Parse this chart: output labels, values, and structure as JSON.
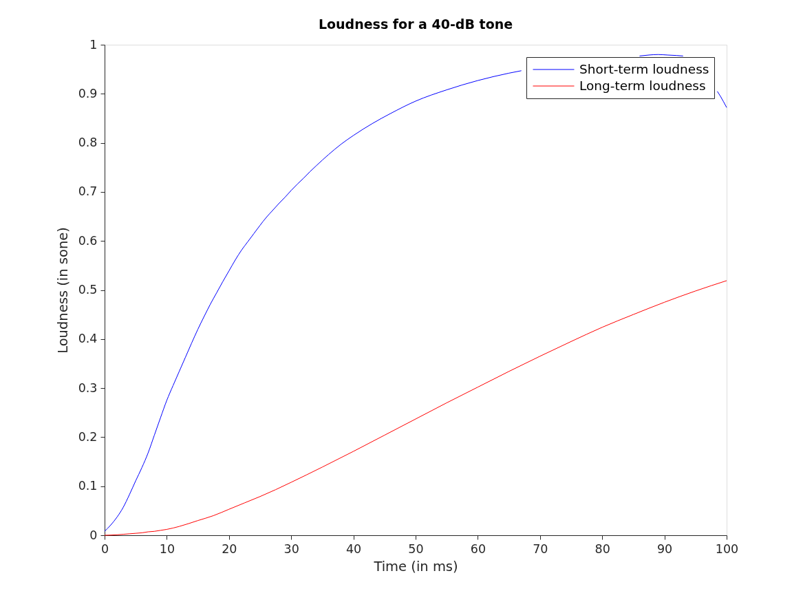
{
  "chart_data": {
    "type": "line",
    "title": "Loudness for a 40-dB tone",
    "xlabel": "Time (in ms)",
    "ylabel": "Loudness (in sone)",
    "xlim": [
      0,
      100
    ],
    "ylim": [
      0,
      1
    ],
    "xticks": [
      0,
      10,
      20,
      30,
      40,
      50,
      60,
      70,
      80,
      90,
      100
    ],
    "yticks": [
      0,
      0.1,
      0.2,
      0.3,
      0.4,
      0.5,
      0.6,
      0.7,
      0.8,
      0.9,
      1
    ],
    "legend": "top right",
    "grid": false,
    "marker": "none",
    "line_style": "solid",
    "series": [
      {
        "name": "Short-term loudness",
        "color": "#0000ff",
        "x": [
          0,
          1,
          2,
          3,
          4,
          5,
          6,
          7,
          8,
          9,
          10,
          11,
          12,
          13,
          14,
          15,
          16,
          17,
          18,
          19,
          20,
          21,
          22,
          23,
          24,
          25,
          26,
          27,
          28,
          29,
          30,
          31,
          32,
          33,
          34,
          36,
          38,
          40,
          43,
          46,
          50,
          55,
          60,
          65,
          67,
          70,
          75,
          80,
          86,
          87.5,
          89,
          90.5,
          92,
          93,
          95,
          97,
          98.5,
          99,
          100
        ],
        "values": [
          0.008,
          0.021,
          0.037,
          0.057,
          0.083,
          0.111,
          0.138,
          0.168,
          0.204,
          0.24,
          0.275,
          0.305,
          0.334,
          0.363,
          0.392,
          0.42,
          0.446,
          0.471,
          0.494,
          0.517,
          0.539,
          0.561,
          0.581,
          0.598,
          0.615,
          0.632,
          0.648,
          0.662,
          0.676,
          0.689,
          0.703,
          0.716,
          0.728,
          0.741,
          0.753,
          0.776,
          0.797,
          0.815,
          0.839,
          0.86,
          0.885,
          0.908,
          0.927,
          0.942,
          0.947,
          null,
          null,
          null,
          0.977,
          0.979,
          0.98,
          0.979,
          0.978,
          0.977,
          null,
          null,
          0.905,
          0.895,
          0.872
        ]
      },
      {
        "name": "Long-term loudness",
        "color": "#ff0000",
        "x": [
          0,
          2,
          3,
          4,
          5,
          6,
          7,
          8,
          9,
          10,
          12,
          15,
          17.5,
          20,
          22.5,
          25,
          27.5,
          30,
          35,
          40,
          45,
          50,
          55,
          60,
          65,
          70,
          75,
          80,
          85,
          90,
          95,
          100
        ],
        "values": [
          0,
          0.001,
          0.002,
          0.003,
          0.004,
          0.005,
          0.007,
          0.008,
          0.01,
          0.012,
          0.018,
          0.03,
          0.04,
          0.053,
          0.066,
          0.079,
          0.093,
          0.108,
          0.139,
          0.171,
          0.204,
          0.237,
          0.27,
          0.302,
          0.334,
          0.365,
          0.395,
          0.424,
          0.45,
          0.475,
          0.498,
          0.519
        ]
      }
    ]
  }
}
